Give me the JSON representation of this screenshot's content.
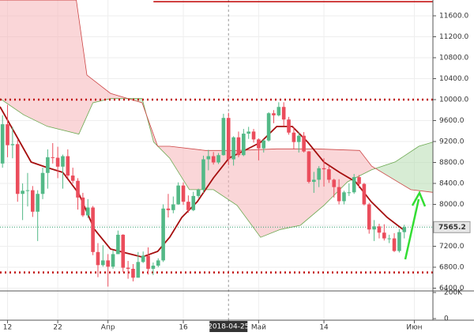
{
  "chart_data": {
    "type": "candlestick",
    "x": [
      0,
      1,
      2,
      3,
      4,
      5,
      6,
      7,
      8,
      9,
      10,
      11,
      12,
      13,
      14,
      15,
      16,
      17,
      18,
      19,
      20,
      21,
      22,
      23,
      24,
      25,
      26,
      27,
      28,
      29,
      30,
      31,
      32,
      33,
      34,
      35,
      36,
      37,
      38,
      39,
      40,
      41,
      42,
      43,
      44,
      45,
      46,
      47,
      48,
      49,
      50,
      51,
      52,
      53,
      54,
      55,
      56,
      57,
      58,
      59,
      60,
      61,
      62,
      63,
      64,
      65,
      66,
      67,
      68,
      69,
      70,
      71,
      72,
      73,
      74,
      75,
      76,
      77,
      78,
      79,
      80
    ],
    "candles": [
      [
        8780,
        9700,
        8700,
        9530
      ],
      [
        9530,
        9900,
        8900,
        9130
      ],
      [
        9130,
        9480,
        8880,
        9150
      ],
      [
        9150,
        9230,
        8050,
        8200
      ],
      [
        8200,
        8400,
        7700,
        8260
      ],
      [
        8260,
        8600,
        7960,
        8270
      ],
      [
        8270,
        8350,
        7760,
        7860
      ],
      [
        7860,
        8270,
        7300,
        8200
      ],
      [
        8200,
        8700,
        8100,
        8600
      ],
      [
        8600,
        9050,
        8300,
        8900
      ],
      [
        8900,
        9170,
        8780,
        8890
      ],
      [
        8890,
        9100,
        8500,
        8720
      ],
      [
        8720,
        8950,
        8300,
        8920
      ],
      [
        8920,
        9050,
        8500,
        8550
      ],
      [
        8550,
        8700,
        8400,
        8450
      ],
      [
        8450,
        8500,
        7900,
        8130
      ],
      [
        8130,
        8220,
        7760,
        7790
      ],
      [
        7790,
        8100,
        7740,
        7940
      ],
      [
        7940,
        7970,
        7030,
        7090
      ],
      [
        7090,
        7260,
        6610,
        6840
      ],
      [
        6840,
        7220,
        6810,
        6930
      ],
      [
        6930,
        7050,
        6430,
        6810
      ],
      [
        6810,
        7120,
        6770,
        7050
      ],
      [
        7050,
        7500,
        7050,
        7420
      ],
      [
        7420,
        7430,
        6710,
        6790
      ],
      [
        6790,
        6920,
        6580,
        6770
      ],
      [
        6770,
        6860,
        6530,
        6600
      ],
      [
        6600,
        7090,
        6600,
        6900
      ],
      [
        6900,
        7100,
        6880,
        7020
      ],
      [
        7020,
        7180,
        6660,
        6770
      ],
      [
        6770,
        6890,
        6650,
        6830
      ],
      [
        6830,
        6970,
        6800,
        6930
      ],
      [
        6930,
        8000,
        6900,
        7920
      ],
      [
        7920,
        8200,
        7750,
        7890
      ],
      [
        7890,
        8150,
        7830,
        8000
      ],
      [
        8000,
        8420,
        7990,
        8360
      ],
      [
        8360,
        8420,
        7990,
        8050
      ],
      [
        8050,
        8170,
        7840,
        7890
      ],
      [
        7890,
        8240,
        7870,
        8160
      ],
      [
        8160,
        8300,
        8120,
        8280
      ],
      [
        8280,
        8930,
        8220,
        8860
      ],
      [
        8860,
        9040,
        8650,
        8920
      ],
      [
        8920,
        9000,
        8760,
        8800
      ],
      [
        8800,
        8980,
        8770,
        8940
      ],
      [
        8940,
        9730,
        8930,
        9650
      ],
      [
        9650,
        9750,
        8750,
        8860
      ],
      [
        8860,
        9300,
        8740,
        9280
      ],
      [
        9280,
        9390,
        8900,
        8940
      ],
      [
        8940,
        9440,
        8920,
        9350
      ],
      [
        9350,
        9480,
        9250,
        9390
      ],
      [
        9390,
        9440,
        9180,
        9240
      ],
      [
        9240,
        9260,
        8840,
        9070
      ],
      [
        9070,
        9240,
        8990,
        9220
      ],
      [
        9220,
        9760,
        9200,
        9740
      ],
      [
        9740,
        9800,
        9550,
        9700
      ],
      [
        9700,
        9950,
        9680,
        9860
      ],
      [
        9860,
        9950,
        9500,
        9620
      ],
      [
        9620,
        9670,
        9330,
        9370
      ],
      [
        9370,
        9470,
        9050,
        9190
      ],
      [
        9190,
        9370,
        8990,
        9310
      ],
      [
        9310,
        9380,
        8990,
        9010
      ],
      [
        9010,
        9020,
        8400,
        8430
      ],
      [
        8430,
        8620,
        8220,
        8470
      ],
      [
        8470,
        8730,
        8330,
        8690
      ],
      [
        8690,
        8880,
        8340,
        8670
      ],
      [
        8670,
        8740,
        8410,
        8470
      ],
      [
        8470,
        8490,
        8130,
        8330
      ],
      [
        8330,
        8480,
        8000,
        8060
      ],
      [
        8060,
        8260,
        8000,
        8230
      ],
      [
        8230,
        8400,
        8160,
        8230
      ],
      [
        8230,
        8580,
        8200,
        8520
      ],
      [
        8520,
        8560,
        8310,
        8390
      ],
      [
        8390,
        8410,
        7980,
        8000
      ],
      [
        8000,
        8030,
        7440,
        7520
      ],
      [
        7520,
        7700,
        7300,
        7580
      ],
      [
        7580,
        7630,
        7350,
        7460
      ],
      [
        7460,
        7620,
        7310,
        7350
      ],
      [
        7350,
        7420,
        7260,
        7350
      ],
      [
        7350,
        7450,
        7090,
        7110
      ],
      [
        7110,
        7530,
        7080,
        7470
      ],
      [
        7470,
        7610,
        7350,
        7565.2
      ]
    ],
    "up_color": "#53b987",
    "down_color": "#eb4d5c",
    "ma": {
      "color": "#a50e0e",
      "x": [
        -0.5,
        2.6,
        5.7,
        8.9,
        12,
        15.2,
        18.3,
        21.5,
        24.6,
        27.8,
        30.9,
        33.3,
        35.7,
        38.8,
        42,
        45.1,
        48.3,
        51.4,
        54.6,
        57.7,
        60.8,
        64,
        67.1,
        70.3,
        73.4,
        76.6,
        79.7,
        80
      ],
      "values": [
        9864,
        9336,
        8808,
        8702,
        8611,
        8204,
        7525,
        7147,
        7072,
        6995,
        7102,
        7374,
        7751,
        8053,
        8506,
        8883,
        9034,
        9185,
        9487,
        9487,
        9185,
        8808,
        8611,
        8430,
        8053,
        7751,
        7525,
        7555
      ]
    },
    "span_a": {
      "color": "#6aa84f",
      "x": [
        -0.5,
        4.2,
        8.9,
        15.2,
        18,
        21.5,
        27.8,
        30.1,
        33.3,
        37.2,
        42,
        46.7,
        51.4,
        55.3,
        59.3,
        64,
        68.7,
        73.5,
        78.2,
        82.9,
        85.7
      ],
      "values": [
        10020,
        9710,
        9490,
        9340,
        9940,
        10020,
        10020,
        9190,
        8880,
        8280,
        8280,
        7980,
        7370,
        7520,
        7600,
        7980,
        8430,
        8660,
        8810,
        9110,
        9190
      ]
    },
    "span_b": {
      "color": "#cc4444",
      "x": [
        -0.5,
        14.7,
        16.8,
        21.5,
        27.8,
        30.9,
        33.3,
        40.4,
        46.7,
        54.6,
        62.4,
        71.1,
        73.5,
        81.3,
        85.7
      ],
      "values": [
        11900,
        11900,
        10470,
        10120,
        9940,
        9110,
        9110,
        9030,
        9030,
        9060,
        9060,
        9030,
        8730,
        8280,
        8230
      ]
    },
    "cloud_up_color": "#b6dcb0",
    "cloud_down_color": "#f5b5b8",
    "levels": [
      {
        "value": 10000,
        "color": "#c00000",
        "style": "dotted"
      },
      {
        "value": 6700,
        "color": "#c00000",
        "style": "dotted"
      },
      {
        "value": 11870,
        "color": "#c00000",
        "style": "solid"
      }
    ],
    "last_price": 7565.2,
    "last_price_color": "#2e9e6e",
    "xlim": [
      -0.5,
      85.7
    ],
    "xticks": [
      {
        "value": 1,
        "label": "12"
      },
      {
        "value": 11,
        "label": "22"
      },
      {
        "value": 21,
        "label": "Апр"
      },
      {
        "value": 36,
        "label": "16"
      },
      {
        "value": 45,
        "label": "2018-04-25"
      },
      {
        "value": 51,
        "label": "Май"
      },
      {
        "value": 64,
        "label": "14"
      },
      {
        "value": 82,
        "label": "Июн"
      }
    ],
    "ylim": [
      6347,
      11902
    ],
    "yticks": [
      {
        "value": 6400,
        "label": "6400.0"
      },
      {
        "value": 6800,
        "label": "6800.0"
      },
      {
        "value": 7200,
        "label": "7200.0"
      },
      {
        "value": 7600,
        "label": "7600.0"
      },
      {
        "value": 8000,
        "label": "8000.0"
      },
      {
        "value": 8400,
        "label": "8400.0"
      },
      {
        "value": 8800,
        "label": "8800.0"
      },
      {
        "value": 9200,
        "label": "9200.0"
      },
      {
        "value": 9600,
        "label": "9600.0"
      },
      {
        "value": 10000,
        "label": "10000.0"
      },
      {
        "value": 10400,
        "label": "10400.0"
      },
      {
        "value": 10800,
        "label": "10800.0"
      },
      {
        "value": 11200,
        "label": "11200.0"
      },
      {
        "value": 11600,
        "label": "11600.0"
      }
    ],
    "volume_ylim": [
      0,
      212000
    ],
    "volume_yticks": [
      {
        "value": 0,
        "label": "0"
      },
      {
        "value": 200000,
        "label": "200K"
      }
    ],
    "crosshair_x": 45,
    "grid": true
  }
}
